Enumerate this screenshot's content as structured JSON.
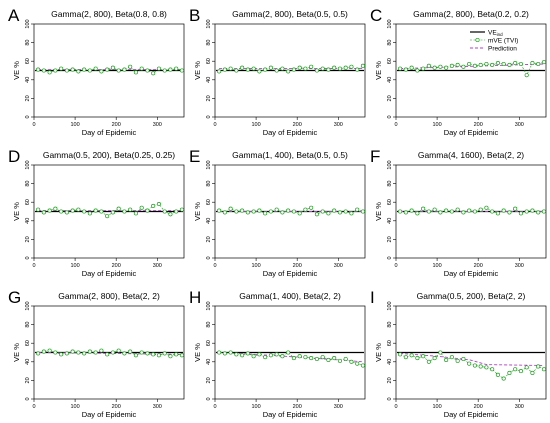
{
  "figure": {
    "xlabel": "Day of Epidemic",
    "ylabel": "VE %",
    "legend": {
      "placement": "top-right of panel C",
      "entries": [
        {
          "name_main": "VE",
          "name_sub": "ind",
          "style": "solid",
          "color": "#000000"
        },
        {
          "name": "mVE (TVI)",
          "style": "dashed-circles",
          "color": "#1a9e1a"
        },
        {
          "name": "Prediction",
          "style": "dashed",
          "color": "#b040c8"
        }
      ]
    }
  },
  "chart_data": [
    {
      "type": "line",
      "letter": "A",
      "title": "Gamma(2, 800), Beta(0.8, 0.8)",
      "xlabel": "Day of Epidemic",
      "ylabel": "VE %",
      "xlim": [
        0,
        365
      ],
      "ylim": [
        0,
        100
      ],
      "xticks": [
        0,
        100,
        200,
        300
      ],
      "yticks": [
        0,
        20,
        40,
        60,
        80,
        100
      ],
      "series": [
        {
          "name": "VE_ind",
          "values": [
            50,
            50
          ]
        },
        {
          "name": "mVE (TVI)",
          "x": [
            10,
            24,
            38,
            52,
            66,
            80,
            94,
            108,
            122,
            136,
            150,
            164,
            178,
            192,
            206,
            220,
            234,
            248,
            262,
            276,
            290,
            304,
            318,
            332,
            346,
            360
          ],
          "values": [
            51,
            50,
            48,
            50,
            52,
            50,
            51,
            49,
            51,
            50,
            52,
            49,
            51,
            53,
            50,
            51,
            54,
            48,
            52,
            50,
            47,
            52,
            50,
            51,
            52,
            50
          ]
        },
        {
          "name": "Prediction",
          "x": [
            10,
            360
          ],
          "values": [
            51,
            51
          ]
        }
      ]
    },
    {
      "type": "line",
      "letter": "B",
      "title": "Gamma(2, 800), Beta(0.5, 0.5)",
      "xlabel": "Day of Epidemic",
      "ylabel": "VE %",
      "xlim": [
        0,
        365
      ],
      "ylim": [
        0,
        100
      ],
      "xticks": [
        0,
        100,
        200,
        300
      ],
      "yticks": [
        0,
        20,
        40,
        60,
        80,
        100
      ],
      "series": [
        {
          "name": "VE_ind",
          "values": [
            50,
            50
          ]
        },
        {
          "name": "mVE (TVI)",
          "x": [
            10,
            24,
            38,
            52,
            66,
            80,
            94,
            108,
            122,
            136,
            150,
            164,
            178,
            192,
            206,
            220,
            234,
            248,
            262,
            276,
            290,
            304,
            318,
            332,
            346,
            360
          ],
          "values": [
            49,
            51,
            52,
            50,
            53,
            51,
            52,
            49,
            51,
            53,
            50,
            52,
            49,
            51,
            53,
            52,
            54,
            50,
            52,
            51,
            53,
            52,
            53,
            54,
            51,
            55
          ]
        },
        {
          "name": "Prediction",
          "x": [
            10,
            360
          ],
          "values": [
            52,
            52
          ]
        }
      ]
    },
    {
      "type": "line",
      "letter": "C",
      "title": "Gamma(2, 800), Beta(0.2, 0.2)",
      "xlabel": "Day of Epidemic",
      "ylabel": "VE %",
      "xlim": [
        0,
        365
      ],
      "ylim": [
        0,
        100
      ],
      "xticks": [
        0,
        100,
        200,
        300
      ],
      "yticks": [
        0,
        20,
        40,
        60,
        80,
        100
      ],
      "series": [
        {
          "name": "VE_ind",
          "values": [
            50,
            50
          ]
        },
        {
          "name": "mVE (TVI)",
          "x": [
            10,
            24,
            38,
            52,
            66,
            80,
            94,
            108,
            122,
            136,
            150,
            164,
            178,
            192,
            206,
            220,
            234,
            248,
            262,
            276,
            290,
            304,
            318,
            332,
            346,
            360
          ],
          "values": [
            52,
            51,
            53,
            50,
            52,
            55,
            53,
            54,
            53,
            55,
            56,
            54,
            57,
            55,
            56,
            57,
            56,
            58,
            57,
            56,
            58,
            57,
            45,
            58,
            57,
            59
          ]
        },
        {
          "name": "Prediction",
          "x": [
            10,
            360
          ],
          "values": [
            52,
            57
          ]
        }
      ]
    },
    {
      "type": "line",
      "letter": "D",
      "title": "Gamma(0.5, 200), Beta(0.25, 0.25)",
      "xlabel": "Day of Epidemic",
      "ylabel": "VE %",
      "xlim": [
        0,
        365
      ],
      "ylim": [
        0,
        100
      ],
      "xticks": [
        0,
        100,
        200,
        300
      ],
      "yticks": [
        0,
        20,
        40,
        60,
        80,
        100
      ],
      "series": [
        {
          "name": "VE_ind",
          "values": [
            50,
            50
          ]
        },
        {
          "name": "mVE (TVI)",
          "x": [
            10,
            24,
            38,
            52,
            66,
            80,
            94,
            108,
            122,
            136,
            150,
            164,
            178,
            192,
            206,
            220,
            234,
            248,
            262,
            276,
            290,
            304,
            318,
            332,
            346,
            360
          ],
          "values": [
            52,
            49,
            51,
            53,
            50,
            49,
            51,
            52,
            50,
            48,
            51,
            50,
            45,
            49,
            53,
            50,
            52,
            48,
            54,
            51,
            56,
            58,
            50,
            47,
            50,
            52
          ]
        },
        {
          "name": "Prediction",
          "x": [
            10,
            360
          ],
          "values": [
            51,
            51
          ]
        }
      ]
    },
    {
      "type": "line",
      "letter": "E",
      "title": "Gamma(1, 400), Beta(0.5, 0.5)",
      "xlabel": "Day of Epidemic",
      "ylabel": "VE %",
      "xlim": [
        0,
        365
      ],
      "ylim": [
        0,
        100
      ],
      "xticks": [
        0,
        100,
        200,
        300
      ],
      "yticks": [
        0,
        20,
        40,
        60,
        80,
        100
      ],
      "series": [
        {
          "name": "VE_ind",
          "values": [
            50,
            50
          ]
        },
        {
          "name": "mVE (TVI)",
          "x": [
            10,
            24,
            38,
            52,
            66,
            80,
            94,
            108,
            122,
            136,
            150,
            164,
            178,
            192,
            206,
            220,
            234,
            248,
            262,
            276,
            290,
            304,
            318,
            332,
            346,
            360
          ],
          "values": [
            51,
            49,
            53,
            50,
            51,
            49,
            50,
            51,
            48,
            50,
            52,
            49,
            51,
            50,
            48,
            52,
            54,
            47,
            50,
            48,
            51,
            49,
            50,
            48,
            52,
            50
          ]
        },
        {
          "name": "Prediction",
          "x": [
            10,
            360
          ],
          "values": [
            50,
            50
          ]
        }
      ]
    },
    {
      "type": "line",
      "letter": "F",
      "title": "Gamma(4, 1600), Beta(2, 2)",
      "xlabel": "Day of Epidemic",
      "ylabel": "VE %",
      "xlim": [
        0,
        365
      ],
      "ylim": [
        0,
        100
      ],
      "xticks": [
        0,
        100,
        200,
        300
      ],
      "yticks": [
        0,
        20,
        40,
        60,
        80,
        100
      ],
      "series": [
        {
          "name": "VE_ind",
          "values": [
            50,
            50
          ]
        },
        {
          "name": "mVE (TVI)",
          "x": [
            10,
            24,
            38,
            52,
            66,
            80,
            94,
            108,
            122,
            136,
            150,
            164,
            178,
            192,
            206,
            220,
            234,
            248,
            262,
            276,
            290,
            304,
            318,
            332,
            346,
            360
          ],
          "values": [
            50,
            49,
            51,
            48,
            53,
            50,
            52,
            49,
            51,
            50,
            52,
            49,
            51,
            50,
            52,
            54,
            50,
            48,
            51,
            49,
            53,
            48,
            50,
            51,
            49,
            50
          ]
        },
        {
          "name": "Prediction",
          "x": [
            10,
            360
          ],
          "values": [
            50,
            50
          ]
        }
      ]
    },
    {
      "type": "line",
      "letter": "G",
      "title": "Gamma(2, 800), Beta(2, 2)",
      "xlabel": "Day of Epidemic",
      "ylabel": "VE %",
      "xlim": [
        0,
        365
      ],
      "ylim": [
        0,
        100
      ],
      "xticks": [
        0,
        100,
        200,
        300
      ],
      "yticks": [
        0,
        20,
        40,
        60,
        80,
        100
      ],
      "series": [
        {
          "name": "VE_ind",
          "values": [
            50,
            50
          ]
        },
        {
          "name": "mVE (TVI)",
          "x": [
            10,
            24,
            38,
            52,
            66,
            80,
            94,
            108,
            122,
            136,
            150,
            164,
            178,
            192,
            206,
            220,
            234,
            248,
            262,
            276,
            290,
            304,
            318,
            332,
            346,
            360
          ],
          "values": [
            49,
            51,
            52,
            50,
            48,
            49,
            51,
            50,
            49,
            51,
            50,
            52,
            48,
            50,
            52,
            49,
            51,
            47,
            50,
            49,
            48,
            47,
            49,
            46,
            48,
            47
          ]
        },
        {
          "name": "Prediction",
          "x": [
            10,
            360
          ],
          "values": [
            50,
            48
          ]
        }
      ]
    },
    {
      "type": "line",
      "letter": "H",
      "title": "Gamma(1, 400), Beta(2, 2)",
      "xlabel": "Day of Epidemic",
      "ylabel": "VE %",
      "xlim": [
        0,
        365
      ],
      "ylim": [
        0,
        100
      ],
      "xticks": [
        0,
        100,
        200,
        300
      ],
      "yticks": [
        0,
        20,
        40,
        60,
        80,
        100
      ],
      "series": [
        {
          "name": "VE_ind",
          "values": [
            50,
            50
          ]
        },
        {
          "name": "mVE (TVI)",
          "x": [
            10,
            24,
            38,
            52,
            66,
            80,
            94,
            108,
            122,
            136,
            150,
            164,
            178,
            192,
            206,
            220,
            234,
            248,
            262,
            276,
            290,
            304,
            318,
            332,
            346,
            360
          ],
          "values": [
            50,
            49,
            50,
            48,
            47,
            49,
            46,
            48,
            45,
            47,
            48,
            46,
            50,
            44,
            46,
            45,
            44,
            43,
            45,
            42,
            44,
            41,
            43,
            40,
            38,
            36
          ]
        },
        {
          "name": "Prediction",
          "x": [
            10,
            100,
            200,
            300,
            360
          ],
          "values": [
            50,
            48,
            45,
            42,
            40
          ]
        }
      ]
    },
    {
      "type": "line",
      "letter": "I",
      "title": "Gamma(0.5, 200), Beta(2, 2)",
      "xlabel": "Day of Epidemic",
      "ylabel": "VE %",
      "xlim": [
        0,
        365
      ],
      "ylim": [
        0,
        100
      ],
      "xticks": [
        0,
        100,
        200,
        300
      ],
      "yticks": [
        0,
        20,
        40,
        60,
        80,
        100
      ],
      "series": [
        {
          "name": "VE_ind",
          "values": [
            50,
            50
          ]
        },
        {
          "name": "mVE (TVI)",
          "x": [
            10,
            24,
            38,
            52,
            66,
            80,
            94,
            108,
            122,
            136,
            150,
            164,
            178,
            192,
            206,
            220,
            234,
            248,
            262,
            276,
            290,
            304,
            318,
            332,
            346,
            360
          ],
          "values": [
            48,
            45,
            47,
            44,
            46,
            40,
            44,
            50,
            42,
            45,
            41,
            43,
            38,
            36,
            35,
            34,
            32,
            26,
            22,
            28,
            32,
            30,
            34,
            28,
            35,
            32
          ]
        },
        {
          "name": "Prediction",
          "x": [
            10,
            100,
            180,
            220,
            360
          ],
          "values": [
            49,
            46,
            42,
            37,
            36
          ]
        }
      ]
    }
  ]
}
